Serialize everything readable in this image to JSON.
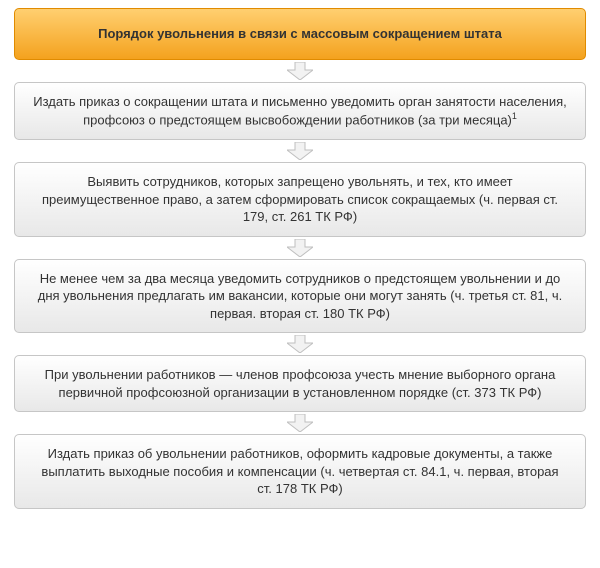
{
  "flowchart": {
    "type": "flowchart",
    "background_color": "#ffffff",
    "font_family": "Arial",
    "title_fontsize": 13,
    "step_fontsize": 13,
    "text_color": "#333333",
    "box_border_radius": 5,
    "arrow": {
      "fill": "#f2f2f2",
      "stroke": "#bfbfbf",
      "width": 26,
      "height": 18
    },
    "title": {
      "text": "Порядок увольнения в связи с массовым сокращением штата",
      "bg_gradient_top": "#ffcf70",
      "bg_gradient_bottom": "#f4a21e",
      "border_color": "#e08b00",
      "font_weight": "bold"
    },
    "step_style": {
      "bg_gradient_top": "#ffffff",
      "bg_gradient_bottom": "#e8e8e8",
      "border_color": "#c6c6c6",
      "font_weight": "normal"
    },
    "steps": [
      {
        "text": "Издать приказ о сокращении штата и письменно уведомить орган занятости населения, профсоюз о предстоящем высвобождении работников (за три месяца)",
        "footnote": "1"
      },
      {
        "text": "Выявить сотрудников, которых запрещено увольнять, и тех, кто имеет преимущественное право, а затем сформировать список сокращаемых (ч. первая ст. 179, ст. 261 ТК РФ)"
      },
      {
        "text": "Не менее чем за два месяца уведомить сотрудников о предстоящем увольнении и до дня увольнения предлагать им вакансии, которые они могут занять (ч. третья ст. 81, ч. первая. вторая ст. 180 ТК РФ)"
      },
      {
        "text": "При увольнении работников — членов профсоюза учесть мнение выборного органа первичной профсоюзной организации в установленном порядке (ст. 373 ТК РФ)"
      },
      {
        "text": "Издать приказ об увольнении работников, оформить кадровые документы, а также выплатить выходные пособия и компенсации (ч. четвертая ст. 84.1, ч. первая, вторая ст. 178 ТК РФ)"
      }
    ]
  }
}
